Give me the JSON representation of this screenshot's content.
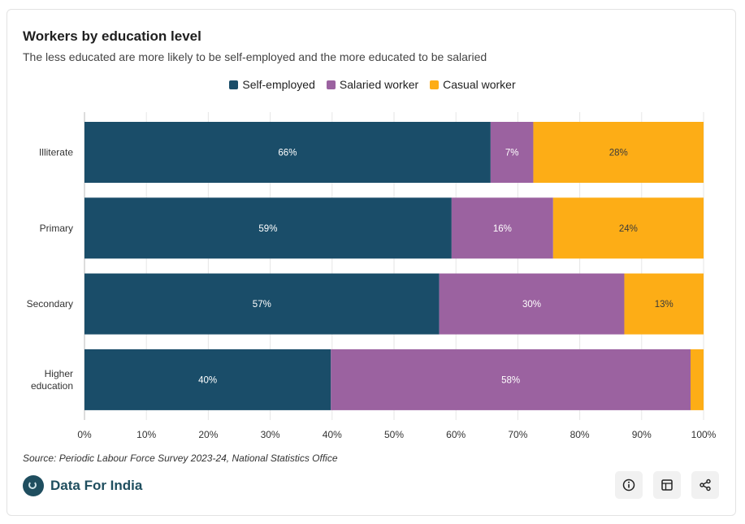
{
  "header": {
    "title": "Workers by education level",
    "subtitle": "The less educated are more likely to be self-employed and the more educated to be salaried"
  },
  "legend": [
    {
      "label": "Self-employed",
      "color": "#1a4d69"
    },
    {
      "label": "Salaried worker",
      "color": "#9b62a0"
    },
    {
      "label": "Casual worker",
      "color": "#fdad16"
    }
  ],
  "chart_data": {
    "type": "bar",
    "orientation": "horizontal",
    "stacked": true,
    "categories": [
      "Illiterate",
      "Primary",
      "Secondary",
      "Higher education"
    ],
    "series": [
      {
        "name": "Self-employed",
        "color": "#1a4d69",
        "values": [
          65.6,
          59.3,
          57.3,
          39.8
        ],
        "labels": [
          "66%",
          "59%",
          "57%",
          "40%"
        ]
      },
      {
        "name": "Salaried worker",
        "color": "#9b62a0",
        "values": [
          6.9,
          16.4,
          29.9,
          58.1
        ],
        "labels": [
          "7%",
          "16%",
          "30%",
          "58%"
        ]
      },
      {
        "name": "Casual worker",
        "color": "#fdad16",
        "values": [
          27.5,
          24.3,
          12.8,
          2.1
        ],
        "labels": [
          "28%",
          "24%",
          "13%",
          ""
        ]
      }
    ],
    "xlim": [
      0,
      100
    ],
    "xticks": [
      "0%",
      "10%",
      "20%",
      "30%",
      "40%",
      "50%",
      "60%",
      "70%",
      "80%",
      "90%",
      "100%"
    ],
    "grid": true
  },
  "footer": {
    "source": "Source: Periodic Labour Force Survey 2023-24, National Statistics Office",
    "brand": "Data For India",
    "buttons": [
      {
        "name": "info-button",
        "icon": "info-icon"
      },
      {
        "name": "table-button",
        "icon": "table-icon"
      },
      {
        "name": "share-button",
        "icon": "share-icon"
      }
    ]
  }
}
